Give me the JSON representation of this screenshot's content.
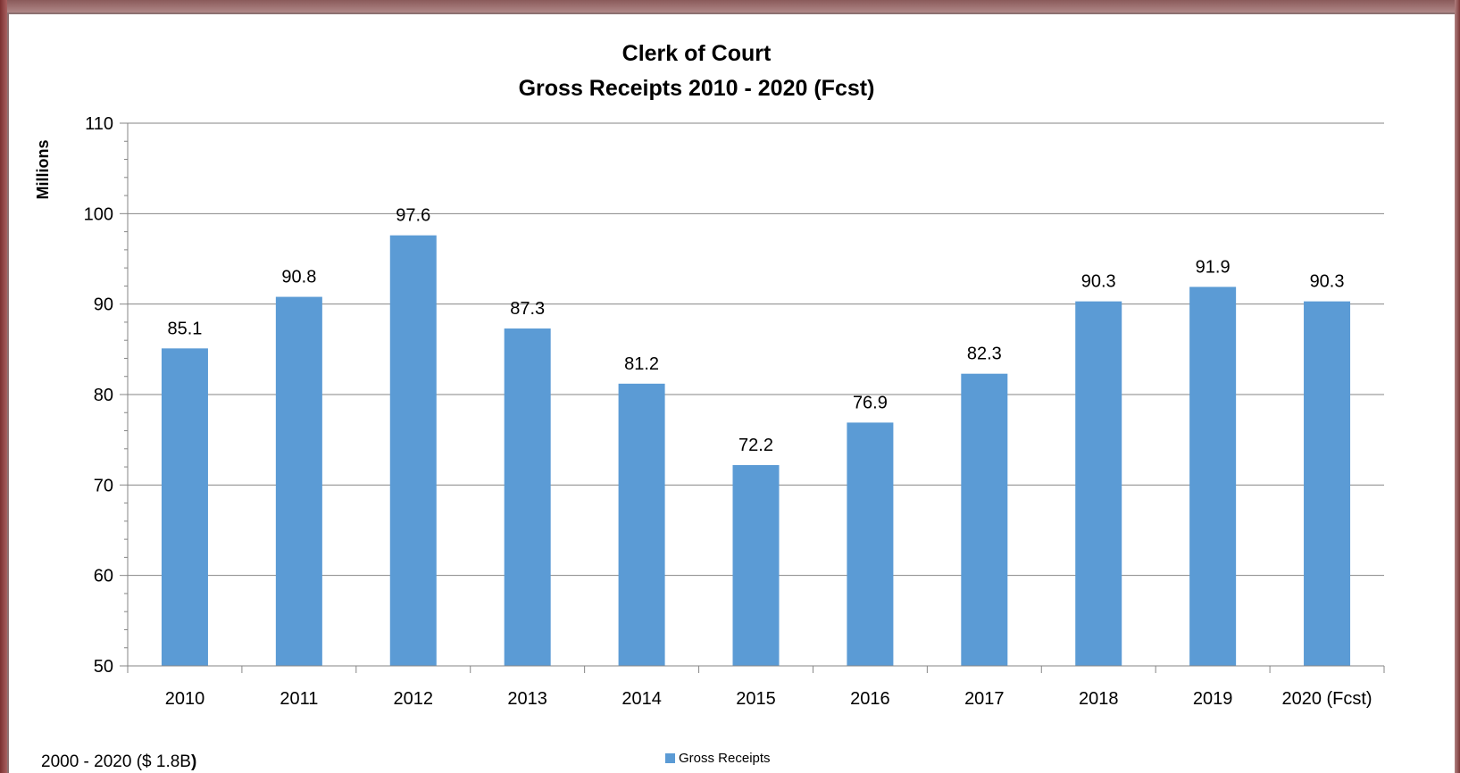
{
  "chart_data": {
    "type": "bar",
    "title": "Clerk of Court",
    "subtitle": "Gross Receipts  2010 - 2020 (Fcst)",
    "xlabel": "",
    "ylabel": "Millions",
    "ylim": [
      50,
      110
    ],
    "yticks": [
      50,
      60,
      70,
      80,
      90,
      100,
      110
    ],
    "categories": [
      "2010",
      "2011",
      "2012",
      "2013",
      "2014",
      "2015",
      "2016",
      "2017",
      "2018",
      "2019",
      "2020 (Fcst)"
    ],
    "series": [
      {
        "name": "Gross Receipts",
        "color": "#5b9bd5",
        "values": [
          85.1,
          90.8,
          97.6,
          87.3,
          81.2,
          72.2,
          76.9,
          82.3,
          90.3,
          91.9,
          90.3
        ],
        "labels": [
          "85.1",
          "90.8",
          "97.6",
          "87.3",
          "81.2",
          "72.2",
          "76.9",
          "82.3",
          "90.3",
          "91.9",
          "90.3"
        ]
      }
    ],
    "grid": true,
    "legend": "bottom"
  },
  "footnote": {
    "text": "2000 - 2020 ($ 1.8B",
    "bold_suffix": ")"
  }
}
